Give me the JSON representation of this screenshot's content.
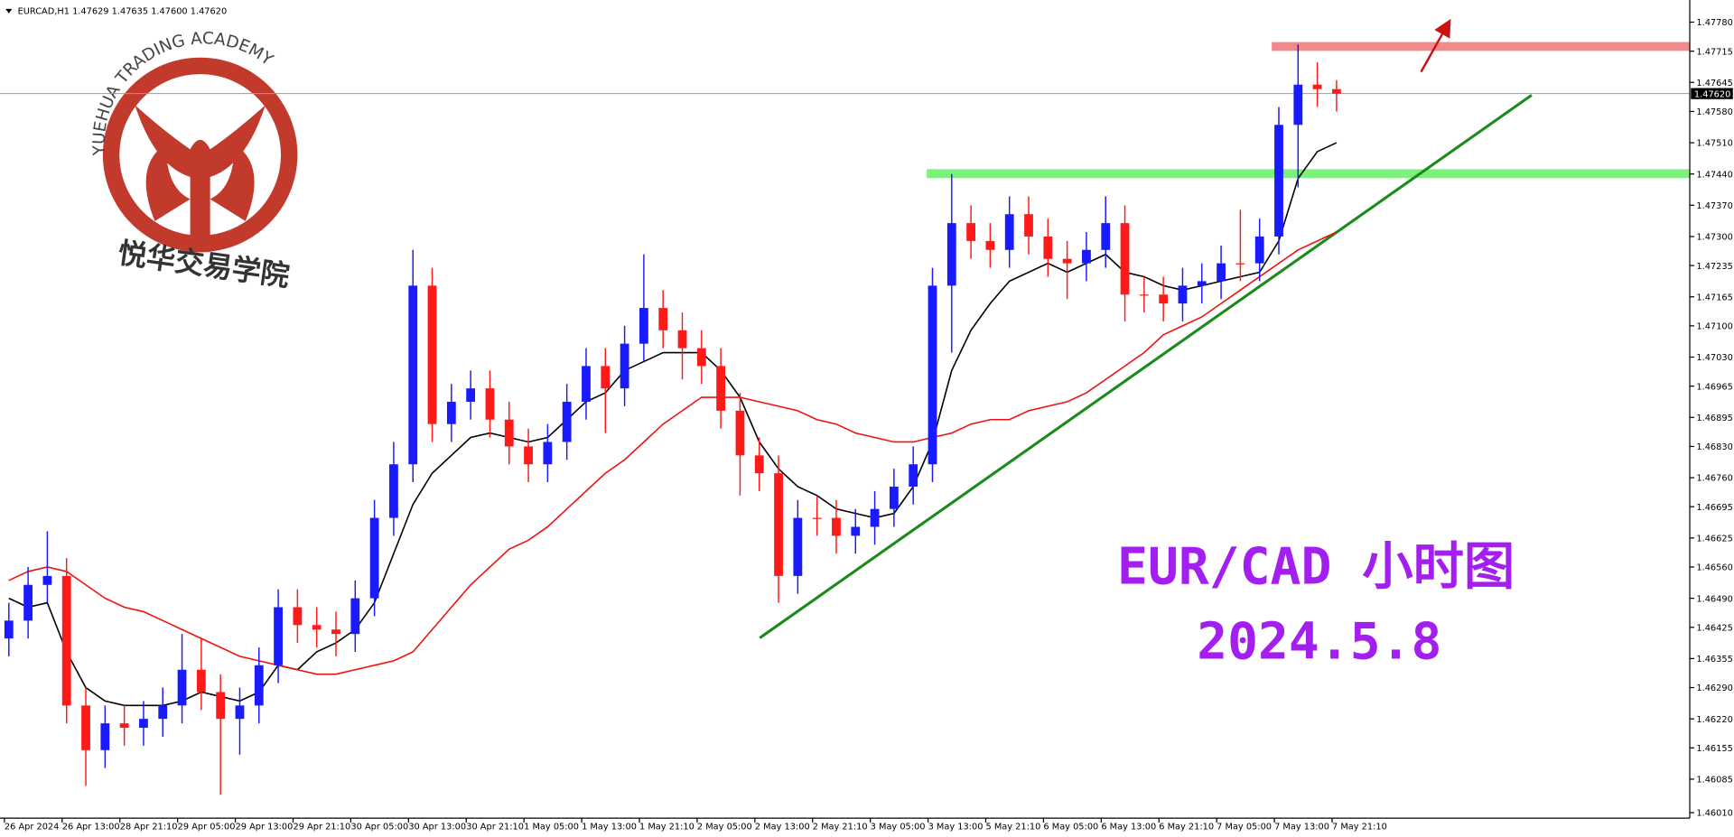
{
  "chart_data": {
    "type": "candlestick",
    "title": "EURCAD,H1  1.47629 1.47635 1.47600 1.47620",
    "logo": {
      "text_en": "YUEHUA TRADING ACADEMY",
      "text_cn": "悦华交易学院"
    },
    "annotations": [
      "EUR/CAD 小时图",
      "2024.5.8"
    ],
    "up_color": "#1a1aff",
    "down_color": "#ff1a1a",
    "categories": [
      "26 Apr 2024",
      null,
      null,
      "26 Apr 13:00",
      null,
      null,
      "28 Apr 21:10",
      null,
      null,
      "29 Apr 05:00",
      null,
      null,
      "29 Apr 13:00",
      null,
      null,
      "29 Apr 21:10",
      null,
      null,
      "30 Apr 05:00",
      null,
      null,
      "30 Apr 13:00",
      null,
      null,
      "30 Apr 21:10",
      null,
      null,
      "1 May 05:00",
      null,
      null,
      "1 May 13:00",
      null,
      null,
      "1 May 21:10",
      null,
      null,
      "2 May 05:00",
      null,
      null,
      "2 May 13:00",
      null,
      null,
      "2 May 21:10",
      null,
      null,
      "3 May 05:00",
      null,
      null,
      "3 May 13:00",
      null,
      null,
      "5 May 21:10",
      null,
      null,
      "6 May 05:00",
      null,
      null,
      "6 May 13:00",
      null,
      null,
      "6 May 21:10",
      null,
      null,
      "7 May 05:00",
      null,
      null,
      "7 May 13:00",
      null,
      null,
      "7 May 21:10"
    ],
    "open": [
      1.464,
      1.4644,
      1.4652,
      1.4654,
      1.4625,
      1.4615,
      1.4621,
      1.462,
      1.4622,
      1.4625,
      1.4633,
      1.4628,
      1.4622,
      1.4625,
      1.4634,
      1.4647,
      1.4643,
      1.4642,
      1.4641,
      1.4649,
      1.4667,
      1.4679,
      1.4719,
      1.4688,
      1.4693,
      1.4696,
      1.4689,
      1.4683,
      1.4679,
      1.4684,
      1.4693,
      1.4701,
      1.4696,
      1.4706,
      1.4714,
      1.4709,
      1.4705,
      1.4701,
      1.4691,
      1.4681,
      1.4677,
      1.4654,
      1.4667,
      1.4667,
      1.4663,
      1.4665,
      1.4669,
      1.4674,
      1.4679,
      1.4719,
      1.4733,
      1.4729,
      1.4727,
      1.4735,
      1.473,
      1.4725,
      1.4724,
      1.4727,
      1.4733,
      1.4717,
      1.4717,
      1.4715,
      1.4719,
      1.472,
      1.4724,
      1.4724,
      1.473,
      1.4755,
      1.4764,
      1.4763
    ],
    "high": [
      1.4648,
      1.4656,
      1.4664,
      1.4658,
      1.4629,
      1.4625,
      1.4625,
      1.4626,
      1.4629,
      1.4641,
      1.464,
      1.4632,
      1.4629,
      1.4638,
      1.4651,
      1.4651,
      1.4647,
      1.4646,
      1.4653,
      1.4671,
      1.4684,
      1.4727,
      1.4723,
      1.4697,
      1.47,
      1.47,
      1.4693,
      1.4687,
      1.4688,
      1.4697,
      1.4705,
      1.4705,
      1.471,
      1.4726,
      1.4718,
      1.4713,
      1.4709,
      1.4705,
      1.4695,
      1.4685,
      1.4681,
      1.4671,
      1.4672,
      1.4671,
      1.4669,
      1.4673,
      1.4678,
      1.4683,
      1.4723,
      1.4744,
      1.4737,
      1.4733,
      1.4739,
      1.4739,
      1.4734,
      1.4729,
      1.4731,
      1.4739,
      1.4737,
      1.4721,
      1.4721,
      1.4723,
      1.4724,
      1.4728,
      1.4736,
      1.4734,
      1.4759,
      1.4773,
      1.4769,
      1.4765
    ],
    "low": [
      1.4636,
      1.464,
      1.4648,
      1.4621,
      1.4607,
      1.4611,
      1.4616,
      1.4616,
      1.4618,
      1.4621,
      1.4624,
      1.4605,
      1.4614,
      1.4621,
      1.463,
      1.4639,
      1.4638,
      1.4636,
      1.4637,
      1.4645,
      1.4663,
      1.4675,
      1.4684,
      1.4684,
      1.4689,
      1.4685,
      1.4679,
      1.4675,
      1.4675,
      1.468,
      1.4689,
      1.4686,
      1.4692,
      1.4702,
      1.4705,
      1.4698,
      1.4697,
      1.4687,
      1.4672,
      1.4673,
      1.4648,
      1.465,
      1.4663,
      1.4659,
      1.4659,
      1.4661,
      1.4665,
      1.467,
      1.4675,
      1.4704,
      1.4725,
      1.4723,
      1.4723,
      1.4726,
      1.4721,
      1.4716,
      1.472,
      1.4723,
      1.4711,
      1.4713,
      1.4711,
      1.4711,
      1.4715,
      1.4716,
      1.472,
      1.472,
      1.4726,
      1.4741,
      1.4759,
      1.4758
    ],
    "close": [
      1.4644,
      1.4652,
      1.4654,
      1.4625,
      1.4615,
      1.4621,
      1.462,
      1.4622,
      1.4625,
      1.4633,
      1.4628,
      1.4622,
      1.4625,
      1.4634,
      1.4647,
      1.4643,
      1.4642,
      1.4641,
      1.4649,
      1.4667,
      1.4679,
      1.4719,
      1.4688,
      1.4693,
      1.4696,
      1.4689,
      1.4683,
      1.4679,
      1.4684,
      1.4693,
      1.4701,
      1.4696,
      1.4706,
      1.4714,
      1.4709,
      1.4705,
      1.4701,
      1.4691,
      1.4681,
      1.4677,
      1.4654,
      1.4667,
      1.4667,
      1.4663,
      1.4665,
      1.4669,
      1.4674,
      1.4679,
      1.4719,
      1.4733,
      1.4729,
      1.4727,
      1.4735,
      1.473,
      1.4725,
      1.4724,
      1.4727,
      1.4733,
      1.4717,
      1.4717,
      1.4715,
      1.4719,
      1.472,
      1.4724,
      1.4724,
      1.473,
      1.4755,
      1.4764,
      1.4763,
      1.4762
    ],
    "series": [
      {
        "color": "#000000",
        "values": [
          1.4649,
          1.4647,
          1.4648,
          1.4637,
          1.4629,
          1.4626,
          1.4625,
          1.4625,
          1.4625,
          1.4626,
          1.4628,
          1.4627,
          1.4626,
          1.4628,
          1.4634,
          1.4633,
          1.4637,
          1.4639,
          1.4642,
          1.4648,
          1.4659,
          1.467,
          1.4677,
          1.4681,
          1.4685,
          1.4686,
          1.4685,
          1.4684,
          1.4685,
          1.4689,
          1.4693,
          1.4695,
          1.47,
          1.4702,
          1.4704,
          1.4704,
          1.4704,
          1.47,
          1.4694,
          1.4684,
          1.4678,
          1.4674,
          1.4672,
          1.4669,
          1.4668,
          1.4667,
          1.4668,
          1.4674,
          1.4684,
          1.47,
          1.4709,
          1.4715,
          1.472,
          1.4722,
          1.4724,
          1.4722,
          1.4724,
          1.4726,
          1.4722,
          1.4721,
          1.4719,
          1.4718,
          1.4719,
          1.472,
          1.4721,
          1.4722,
          1.4729,
          1.4743,
          1.4749,
          1.4751
        ]
      },
      {
        "color": "#ee1111",
        "values": [
          1.4653,
          1.4655,
          1.4656,
          1.4655,
          1.4652,
          1.4649,
          1.4647,
          1.4646,
          1.4644,
          1.4642,
          1.464,
          1.4638,
          1.4636,
          1.4635,
          1.4634,
          1.4633,
          1.4632,
          1.4632,
          1.4633,
          1.4634,
          1.4635,
          1.4637,
          1.4642,
          1.4647,
          1.4652,
          1.4656,
          1.466,
          1.4662,
          1.4665,
          1.4669,
          1.4673,
          1.4677,
          1.468,
          1.4684,
          1.4688,
          1.4691,
          1.4694,
          1.4694,
          1.4694,
          1.4693,
          1.4692,
          1.4691,
          1.4689,
          1.4688,
          1.4686,
          1.4685,
          1.4684,
          1.4684,
          1.4685,
          1.4686,
          1.4688,
          1.4689,
          1.4689,
          1.4691,
          1.4692,
          1.4693,
          1.4695,
          1.4698,
          1.4701,
          1.4704,
          1.4708,
          1.471,
          1.4712,
          1.4715,
          1.4718,
          1.4721,
          1.4724,
          1.4727,
          1.4729,
          1.4731
        ]
      }
    ],
    "last_price": {
      "value": 1.4762,
      "label": "1.47620"
    },
    "ylim": [
      1.4601,
      1.4778
    ],
    "yticks": [
      {
        "value": 1.4778,
        "label": "1.47780"
      },
      1.47715,
      1.47645,
      {
        "value": 1.4758,
        "label": "1.47580"
      },
      {
        "value": 1.4751,
        "label": "1.47510"
      },
      {
        "value": 1.4744,
        "label": "1.47440"
      },
      {
        "value": 1.4737,
        "label": "1.47370"
      },
      {
        "value": 1.473,
        "label": "1.47300"
      },
      1.47235,
      1.47165,
      {
        "value": 1.471,
        "label": "1.47100"
      },
      {
        "value": 1.4703,
        "label": "1.47030"
      },
      1.46965,
      1.46895,
      {
        "value": 1.4683,
        "label": "1.46830"
      },
      {
        "value": 1.4676,
        "label": "1.46760"
      },
      1.46695,
      1.46625,
      {
        "value": 1.4656,
        "label": "1.46560"
      },
      {
        "value": 1.4649,
        "label": "1.46490"
      },
      1.46425,
      1.46355,
      {
        "value": 1.4629,
        "label": "1.46290"
      },
      {
        "value": 1.4622,
        "label": "1.46220"
      },
      1.46155,
      1.46085,
      {
        "value": 1.4601,
        "label": "1.46010"
      }
    ]
  }
}
